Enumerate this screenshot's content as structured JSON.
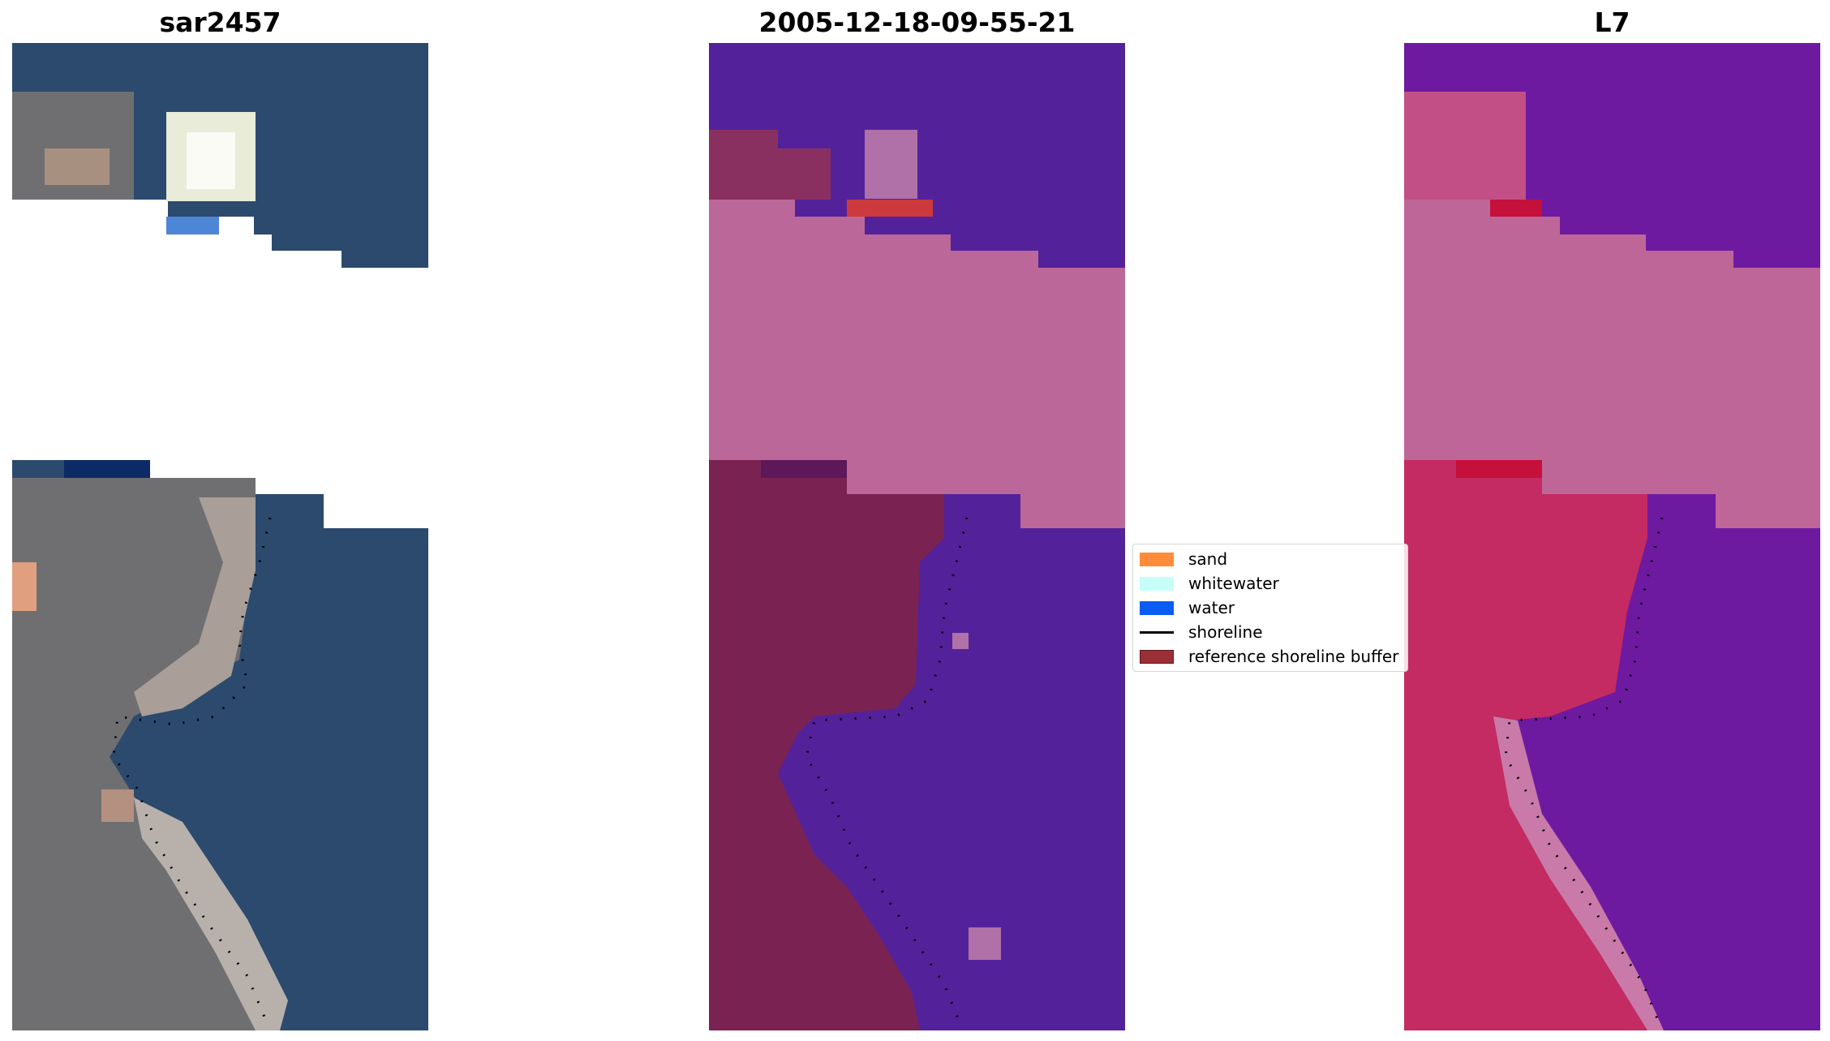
{
  "figure": {
    "panels": [
      {
        "title": "sar2457"
      },
      {
        "title": "2005-12-18-09-55-21"
      },
      {
        "title": "L7"
      }
    ]
  },
  "legend": {
    "items": [
      {
        "label": "sand",
        "color": "#ff8c3a",
        "kind": "patch"
      },
      {
        "label": "whitewater",
        "color": "#c6fff8",
        "kind": "patch"
      },
      {
        "label": "water",
        "color": "#0b5cf5",
        "kind": "patch"
      },
      {
        "label": "shoreline",
        "color": "#000000",
        "kind": "line"
      },
      {
        "label": "reference shoreline buffer",
        "color": "#9b2f36",
        "kind": "patch"
      }
    ]
  },
  "colors": {
    "rgb_water": "#2c4a6e",
    "rgb_land": "#6f6f72",
    "rgb_sand": "#b8a08a",
    "class_water": "#53229a",
    "class_land": "#7a2352",
    "class_buffer": "#bc6799",
    "class_sand_strip": "#cc3a3d",
    "nir_water": "#6e1aa0",
    "nir_land": "#c42b62",
    "nir_buffer": "#bf6699"
  }
}
